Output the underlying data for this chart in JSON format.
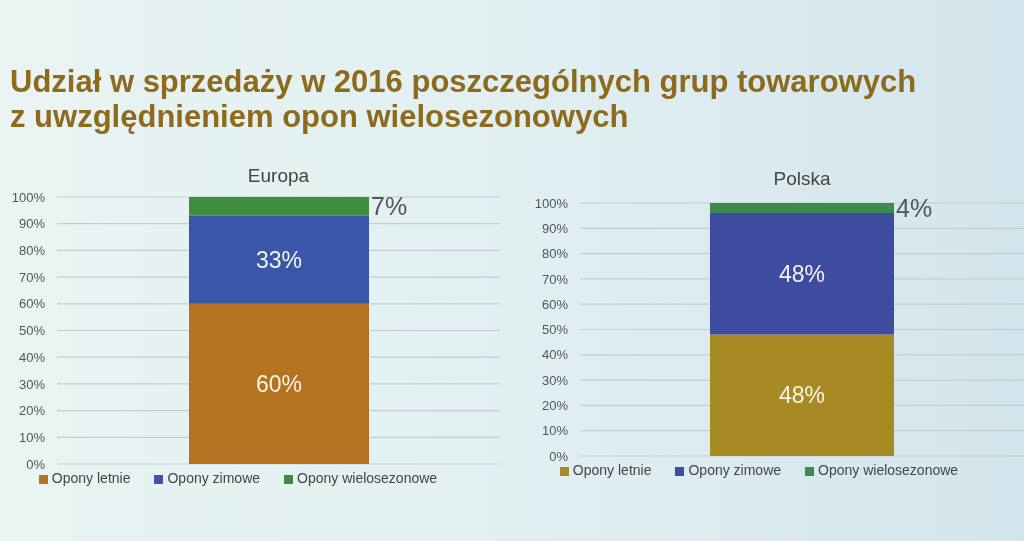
{
  "chart_data": [
    {
      "type": "bar",
      "title": "Udział w sprzedaży w 2016 poszczególnych grup towarowych z uwzględnieniem opon wielosezonowych",
      "subtitle": "Europa",
      "categories": [
        null
      ],
      "stacked": true,
      "series": [
        {
          "name": "Opony letnie",
          "color": "#b5721f",
          "values": [
            60
          ],
          "value_labels": [
            "60%"
          ]
        },
        {
          "name": "Opony zimowe",
          "color": "#3a56a8",
          "values": [
            33
          ],
          "value_labels": [
            "33%"
          ]
        },
        {
          "name": "Opony wielosezonowe",
          "color": "#3f8b3f",
          "values": [
            7
          ],
          "value_labels": [
            "7%"
          ]
        }
      ],
      "ylim": [
        0,
        100
      ],
      "yticks": [
        {
          "value": 0,
          "label": "0%"
        },
        {
          "value": 10,
          "label": "10%"
        },
        {
          "value": 20,
          "label": "20%"
        },
        {
          "value": 30,
          "label": "30%"
        },
        {
          "value": 40,
          "label": "40%"
        },
        {
          "value": 50,
          "label": "50%"
        },
        {
          "value": 60,
          "label": "60%"
        },
        {
          "value": 70,
          "label": "70%"
        },
        {
          "value": 80,
          "label": "80%"
        },
        {
          "value": 90,
          "label": "90%"
        },
        {
          "value": 100,
          "label": "100%"
        }
      ],
      "grid": "y",
      "legend": "bottom"
    },
    {
      "type": "bar",
      "subtitle": "Polska",
      "categories": [
        null
      ],
      "stacked": true,
      "series": [
        {
          "name": "Opony letnie",
          "color": "#a88a24",
          "values": [
            48
          ],
          "value_labels": [
            "48%"
          ]
        },
        {
          "name": "Opony zimowe",
          "color": "#3d4c9e",
          "values": [
            48
          ],
          "value_labels": [
            "48%"
          ]
        },
        {
          "name": "Opony wielosezonowe",
          "color": "#3e8a4c",
          "values": [
            4
          ],
          "value_labels": [
            "4%"
          ]
        }
      ],
      "ylim": [
        0,
        100
      ],
      "yticks": [
        {
          "value": 0,
          "label": "0%"
        },
        {
          "value": 10,
          "label": "10%"
        },
        {
          "value": 20,
          "label": "20%"
        },
        {
          "value": 30,
          "label": "30%"
        },
        {
          "value": 40,
          "label": "40%"
        },
        {
          "value": 50,
          "label": "50%"
        },
        {
          "value": 60,
          "label": "60%"
        },
        {
          "value": 70,
          "label": "70%"
        },
        {
          "value": 80,
          "label": "80%"
        },
        {
          "value": 90,
          "label": "90%"
        },
        {
          "value": 100,
          "label": "100%"
        }
      ],
      "grid": "y",
      "legend": "bottom"
    }
  ]
}
